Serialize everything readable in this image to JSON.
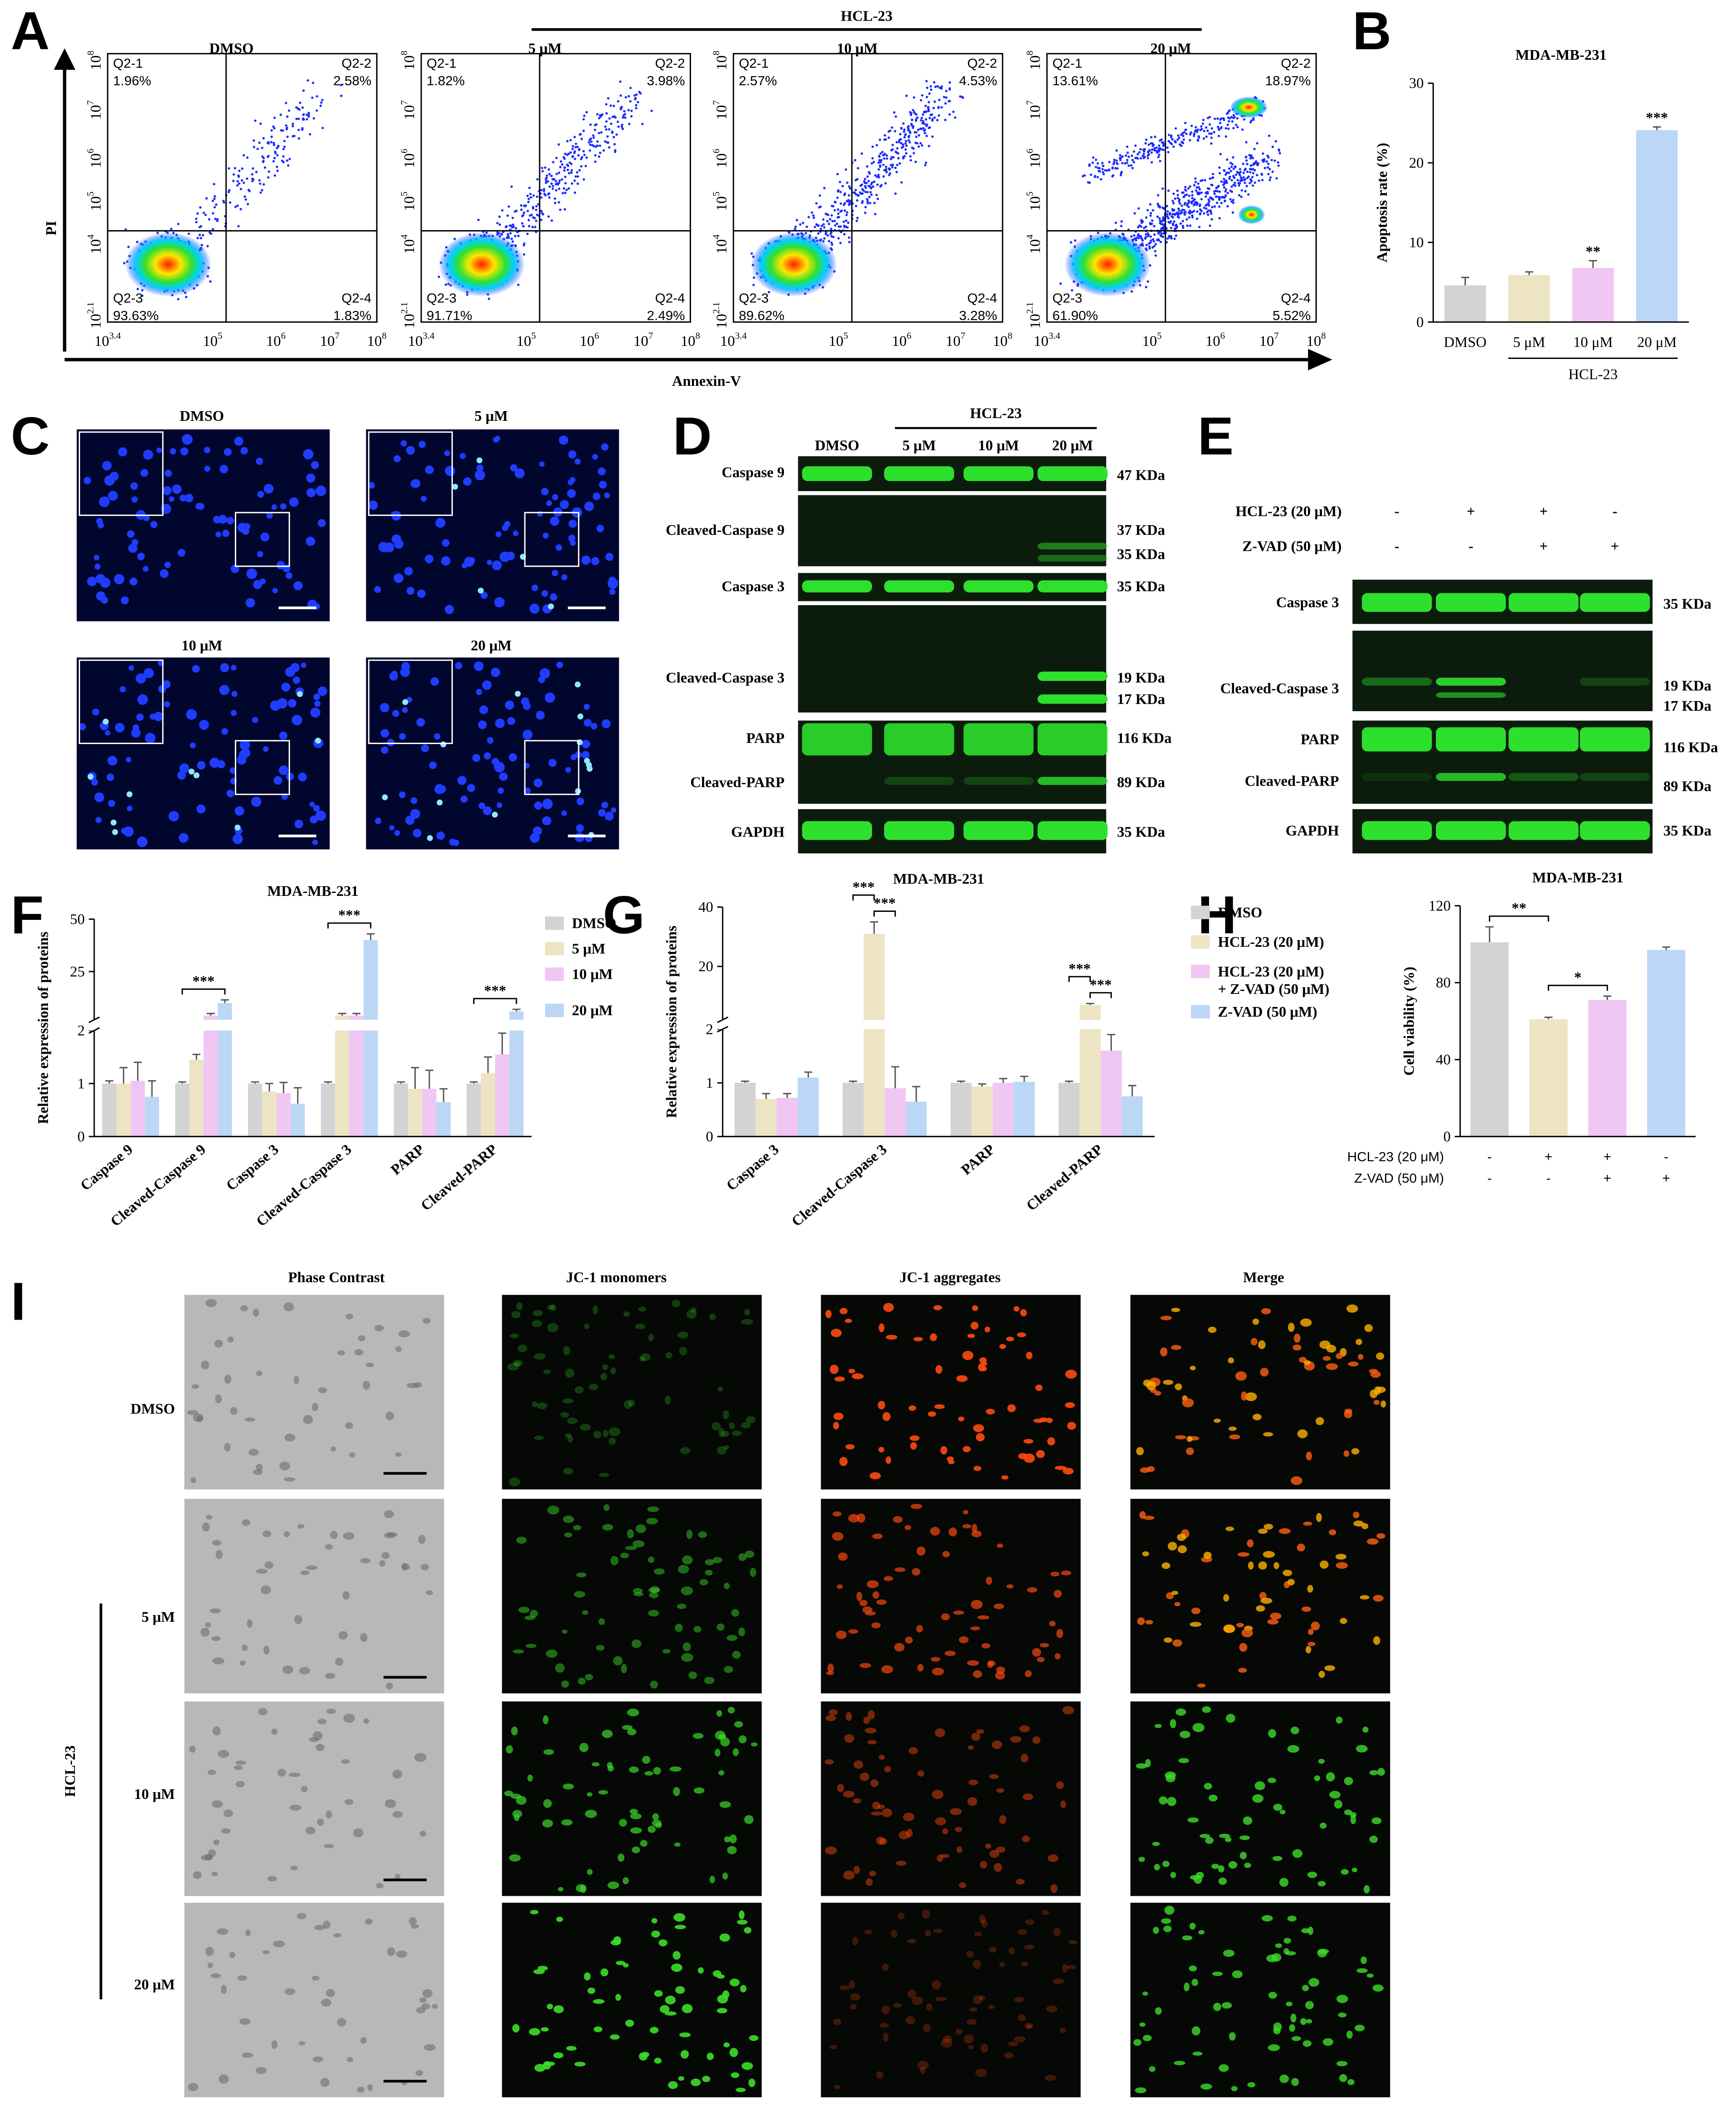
{
  "panel_labels": [
    "A",
    "B",
    "C",
    "D",
    "E",
    "F",
    "G",
    "H",
    "I"
  ],
  "panels": {
    "A": {
      "group_label": "HCL-23",
      "x_label": "Annexin-V",
      "y_label": "PI",
      "tick_base": "10",
      "x_tick_exponents": [
        "3.4",
        "5",
        "6",
        "7",
        "8"
      ],
      "y_tick_exponents": [
        "8",
        "7",
        "6",
        "5",
        "4",
        "2.1"
      ],
      "plots": [
        {
          "title": "DMSO",
          "quadrants": [
            {
              "name": "Q2-1",
              "value": "1.96%"
            },
            {
              "name": "Q2-2",
              "value": "2.58%"
            },
            {
              "name": "Q2-3",
              "value": "93.63%"
            },
            {
              "name": "Q2-4",
              "value": "1.83%"
            }
          ]
        },
        {
          "title": "5 μM",
          "quadrants": [
            {
              "name": "Q2-1",
              "value": "1.82%"
            },
            {
              "name": "Q2-2",
              "value": "3.98%"
            },
            {
              "name": "Q2-3",
              "value": "91.71%"
            },
            {
              "name": "Q2-4",
              "value": "2.49%"
            }
          ]
        },
        {
          "title": "10 μM",
          "quadrants": [
            {
              "name": "Q2-1",
              "value": "2.57%"
            },
            {
              "name": "Q2-2",
              "value": "4.53%"
            },
            {
              "name": "Q2-3",
              "value": "89.62%"
            },
            {
              "name": "Q2-4",
              "value": "3.28%"
            }
          ]
        },
        {
          "title": "20 μM",
          "quadrants": [
            {
              "name": "Q2-1",
              "value": "13.61%"
            },
            {
              "name": "Q2-2",
              "value": "18.97%"
            },
            {
              "name": "Q2-3",
              "value": "61.90%"
            },
            {
              "name": "Q2-4",
              "value": "5.52%"
            }
          ]
        }
      ]
    },
    "C": {
      "images": [
        "DMSO",
        "5 μM",
        "10 μM",
        "20 μM"
      ]
    },
    "D": {
      "group_label": "HCL-23",
      "columns": [
        "DMSO",
        "5 μM",
        "10 μM",
        "20 μM"
      ],
      "rows": [
        {
          "name": "Caspase 9",
          "sizes": [
            "47 KDa"
          ]
        },
        {
          "name": "Cleaved-Caspase 9",
          "sizes": [
            "37 KDa",
            "35 KDa"
          ]
        },
        {
          "name": "Caspase 3",
          "sizes": [
            "35 KDa"
          ]
        },
        {
          "name": "Cleaved-Caspase 3",
          "sizes": [
            "19 KDa",
            "17 KDa"
          ]
        },
        {
          "name": "PARP",
          "sizes": [
            "116 KDa"
          ]
        },
        {
          "name": "Cleaved-PARP",
          "sizes": [
            "89 KDa"
          ]
        },
        {
          "name": "GAPDH",
          "sizes": [
            "35 KDa"
          ]
        }
      ]
    },
    "E": {
      "conditions": [
        {
          "name": "HCL-23 (20 μM)",
          "signs": [
            "-",
            "+",
            "+",
            "-"
          ]
        },
        {
          "name": "Z-VAD (50 μM)",
          "signs": [
            "-",
            "-",
            "+",
            "+"
          ]
        }
      ],
      "rows": [
        {
          "name": "Caspase 3",
          "sizes": [
            "35 KDa"
          ]
        },
        {
          "name": "Cleaved-Caspase 3",
          "sizes": [
            "19 KDa",
            "17 KDa"
          ]
        },
        {
          "name": "PARP",
          "sizes": [
            "116 KDa"
          ]
        },
        {
          "name": "Cleaved-PARP",
          "sizes": [
            "89 KDa"
          ]
        },
        {
          "name": "GAPDH",
          "sizes": [
            "35 KDa"
          ]
        }
      ]
    },
    "I": {
      "columns": [
        "Phase Contrast",
        "JC-1 monomers",
        "JC-1 aggregates",
        "Merge"
      ],
      "rows": [
        "DMSO",
        "5 μM",
        "10 μM",
        "20 μM"
      ],
      "group_label": "HCL-23"
    }
  },
  "chart_data": [
    {
      "type": "bar",
      "title": "MDA-MB-231",
      "y_label": "Apoptosis rate (%)",
      "categories": [
        "DMSO",
        "5 μM",
        "10 μM",
        "20 μM"
      ],
      "values": [
        4.6,
        5.9,
        6.8,
        24.1
      ],
      "errors": [
        1.0,
        0.4,
        0.9,
        0.4
      ],
      "colors": [
        "#d3d3d3",
        "#ede4c4",
        "#f0c6f3",
        "#bcd7f5"
      ],
      "ylim": [
        0,
        30
      ],
      "yticks": [
        0,
        10,
        20,
        30
      ],
      "significance": [
        {
          "index": 2,
          "label": "**"
        },
        {
          "index": 3,
          "label": "***"
        }
      ],
      "group": {
        "label": "HCL-23",
        "from": 1,
        "to": 3
      }
    },
    {
      "type": "grouped_bar",
      "title": "MDA-MB-231",
      "y_label": "Relative expression of proteins",
      "categories": [
        "Caspase 9",
        "Cleaved-Caspase 9",
        "Caspase 3",
        "Cleaved-Caspase 3",
        "PARP",
        "Cleaved-PARP"
      ],
      "ylim": [
        0,
        50
      ],
      "ybreak": 2,
      "yticks": [
        0,
        1,
        2,
        25,
        50
      ],
      "series": [
        {
          "name": "DMSO",
          "color": "#d3d3d3",
          "values": [
            1,
            1,
            1,
            1,
            1,
            1
          ],
          "errors": [
            0.05,
            0.03,
            0.03,
            0.03,
            0.03,
            0.03
          ]
        },
        {
          "name": "5 μM",
          "color": "#ede4c4",
          "values": [
            1.0,
            1.45,
            0.85,
            4,
            0.9,
            1.2
          ],
          "errors": [
            0.3,
            0.1,
            0.15,
            1,
            0.4,
            0.3
          ]
        },
        {
          "name": "10 μM",
          "color": "#f0c6f3",
          "values": [
            1.05,
            4,
            0.82,
            4,
            0.9,
            1.55
          ],
          "errors": [
            0.35,
            1,
            0.2,
            1,
            0.35,
            0.4
          ]
        },
        {
          "name": "20 μM",
          "color": "#bcd7f5",
          "values": [
            0.75,
            10,
            0.62,
            40,
            0.65,
            6
          ],
          "errors": [
            0.3,
            1.5,
            0.3,
            3,
            0.25,
            1
          ]
        }
      ],
      "brackets": [
        {
          "category": 1,
          "from": 0,
          "to": 3,
          "label": "***"
        },
        {
          "category": 3,
          "from": 0,
          "to": 3,
          "label": "***"
        },
        {
          "category": 5,
          "from": 0,
          "to": 3,
          "label": "***"
        }
      ]
    },
    {
      "type": "grouped_bar",
      "title": "MDA-MB-231",
      "y_label": "Relative expression of proteins",
      "categories": [
        "Caspase 3",
        "Cleaved-Caspase 3",
        "PARP",
        "Cleaved-PARP"
      ],
      "ylim": [
        0,
        40
      ],
      "ybreak": 2,
      "yticks": [
        0,
        1,
        2,
        20,
        40
      ],
      "series": [
        {
          "name": "DMSO",
          "color": "#d3d3d3",
          "values": [
            1,
            1,
            1,
            1
          ],
          "errors": [
            0.03,
            0.03,
            0.03,
            0.03
          ]
        },
        {
          "name": "HCL-23 (20 μM)",
          "color": "#ede4c4",
          "values": [
            0.7,
            31,
            0.93,
            7
          ],
          "errors": [
            0.1,
            4,
            0.05,
            0.5
          ]
        },
        {
          "name": "HCL-23 (20 μM) + Z-VAD (50 μM)",
          "color": "#f0c6f3",
          "values": [
            0.72,
            0.9,
            1.0,
            1.6
          ],
          "errors": [
            0.08,
            0.4,
            0.08,
            0.3
          ]
        },
        {
          "name": "Z-VAD (50 μM)",
          "color": "#bcd7f5",
          "values": [
            1.1,
            0.65,
            1.02,
            0.75
          ],
          "errors": [
            0.1,
            0.28,
            0.1,
            0.2
          ]
        }
      ],
      "brackets": [
        {
          "category": 1,
          "from": 0,
          "to": 1,
          "label": "***"
        },
        {
          "category": 1,
          "from": 1,
          "to": 2,
          "label": "***"
        },
        {
          "category": 3,
          "from": 0,
          "to": 1,
          "label": "***"
        },
        {
          "category": 3,
          "from": 1,
          "to": 2,
          "label": "***"
        }
      ]
    },
    {
      "type": "bar",
      "title": "MDA-MB-231",
      "y_label": "Cell viability (%)",
      "values": [
        101,
        61,
        71,
        97
      ],
      "errors": [
        8,
        1,
        2,
        1.5
      ],
      "colors": [
        "#d3d3d3",
        "#ede4c4",
        "#f0c6f3",
        "#bcd7f5"
      ],
      "ylim": [
        0,
        120
      ],
      "yticks": [
        0,
        40,
        80,
        120
      ],
      "brackets": [
        {
          "from": 0,
          "to": 1,
          "label": "**"
        },
        {
          "from": 1,
          "to": 2,
          "label": "*"
        }
      ],
      "conditions": [
        {
          "name": "HCL-23 (20 μM)",
          "signs": [
            "-",
            "+",
            "+",
            "-"
          ]
        },
        {
          "name": "Z-VAD (50 μM)",
          "signs": [
            "-",
            "-",
            "+",
            "+"
          ]
        }
      ]
    }
  ]
}
